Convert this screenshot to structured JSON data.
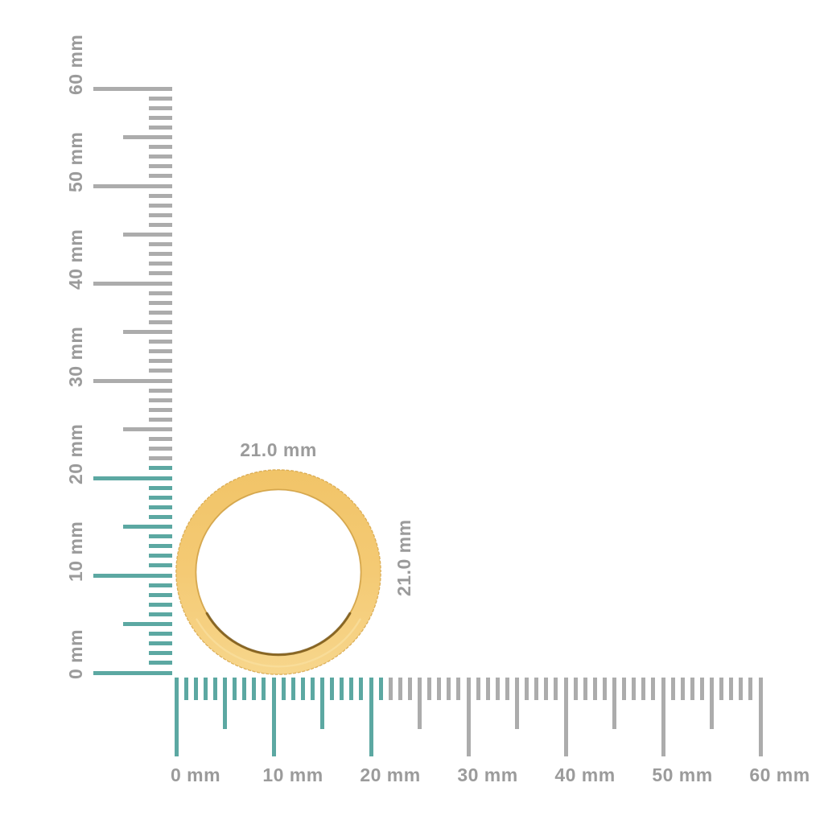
{
  "page": {
    "background": "#ffffff"
  },
  "measurement": {
    "object": "gold ring band, side profile view",
    "width_label": "21.0 mm",
    "height_label": "21.0 mm",
    "diameter_mm": 21.0,
    "unit": "mm"
  },
  "rulers": {
    "unit": "mm",
    "min_mm": 0,
    "max_mm": 60,
    "minor_step_mm": 1,
    "mid_step_mm": 5,
    "major_step_mm": 10,
    "highlight_extent_mm": 21,
    "colors": {
      "tick_gray": "#ACACAC",
      "tick_teal": "#5CA8A2",
      "label_gray": "#9B9B9B"
    },
    "vertical": {
      "labels": [
        "0 mm",
        "10 mm",
        "20 mm",
        "30 mm",
        "40 mm",
        "50 mm",
        "60 mm"
      ]
    },
    "horizontal": {
      "labels": [
        "0 mm",
        "10 mm",
        "20 mm",
        "30 mm",
        "40 mm",
        "50 mm",
        "60 mm"
      ]
    }
  },
  "ring_colors": {
    "gold_top": "#F1C468",
    "gold_mid": "#F4CA74",
    "gold_bottom": "#F7D68C",
    "edge_dark": "#D8A84C",
    "inner_edge": "#D2A246",
    "inner_shadow": "#6E4E10",
    "serration": "#FFFFFF"
  }
}
